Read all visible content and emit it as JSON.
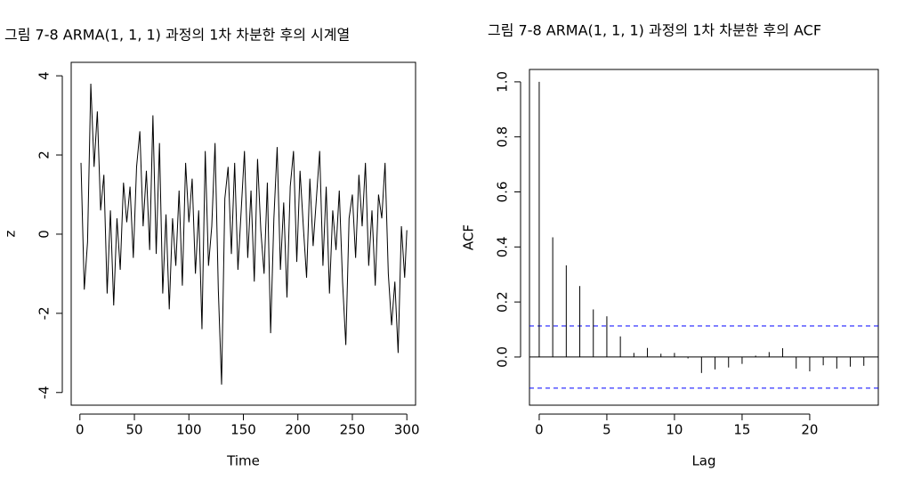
{
  "chart_data": [
    {
      "type": "line",
      "title": "그림 7-8 ARMA(1, 1, 1) 과정의 1차 차분한 후의 시계열",
      "x_label": "Time",
      "y_label": "z",
      "color": "#000000",
      "x": [
        1,
        4,
        7,
        10,
        13,
        16,
        19,
        22,
        25,
        28,
        31,
        34,
        37,
        40,
        43,
        46,
        49,
        52,
        55,
        58,
        61,
        64,
        67,
        70,
        73,
        76,
        79,
        82,
        85,
        88,
        91,
        94,
        97,
        100,
        103,
        106,
        109,
        112,
        115,
        118,
        121,
        124,
        127,
        130,
        133,
        136,
        139,
        142,
        145,
        148,
        151,
        154,
        157,
        160,
        163,
        166,
        169,
        172,
        175,
        178,
        181,
        184,
        187,
        190,
        193,
        196,
        199,
        202,
        205,
        208,
        211,
        214,
        217,
        220,
        223,
        226,
        229,
        232,
        235,
        238,
        241,
        244,
        247,
        250,
        253,
        256,
        259,
        262,
        265,
        268,
        271,
        274,
        277,
        280,
        283,
        286,
        289,
        292,
        295,
        298,
        300
      ],
      "values": [
        1.8,
        -1.4,
        -0.2,
        3.8,
        1.7,
        3.1,
        0.6,
        1.5,
        -1.5,
        0.6,
        -1.8,
        0.4,
        -0.9,
        1.3,
        0.3,
        1.2,
        -0.6,
        1.7,
        2.6,
        0.2,
        1.6,
        -0.4,
        3.0,
        -0.5,
        2.3,
        -1.5,
        0.5,
        -1.9,
        0.4,
        -0.8,
        1.1,
        -1.3,
        1.8,
        0.3,
        1.4,
        -1.0,
        0.6,
        -2.4,
        2.1,
        -0.8,
        0.2,
        2.3,
        -1.4,
        -3.8,
        0.9,
        1.7,
        -0.5,
        1.8,
        -0.9,
        0.6,
        2.1,
        -0.6,
        1.1,
        -1.2,
        1.9,
        0.1,
        -1.0,
        1.3,
        -2.5,
        0.4,
        2.2,
        -0.9,
        0.8,
        -1.6,
        1.2,
        2.1,
        -0.7,
        1.6,
        0.2,
        -1.1,
        1.4,
        -0.3,
        0.9,
        2.1,
        -0.8,
        1.2,
        -1.5,
        0.6,
        -0.4,
        1.1,
        -1.2,
        -2.8,
        0.4,
        1.0,
        -0.6,
        1.5,
        0.2,
        1.8,
        -0.8,
        0.6,
        -1.3,
        1.0,
        0.4,
        1.8,
        -1.0,
        -2.3,
        -1.2,
        -3.0,
        0.2,
        -1.1,
        0.1
      ],
      "xlim": [
        -8,
        308
      ],
      "ylim": [
        -4.32,
        4.34
      ],
      "xticks": [
        0,
        50,
        100,
        150,
        200,
        250,
        300
      ],
      "yticks": [
        -4,
        -2,
        0,
        2,
        4
      ]
    },
    {
      "type": "acf",
      "title": "그림 7-8 ARMA(1, 1, 1) 과정의 1차 차분한 후의 ACF",
      "x_label": "Lag",
      "y_label": "ACF",
      "color": "#000000",
      "x": [
        0,
        1,
        2,
        3,
        4,
        5,
        6,
        7,
        8,
        9,
        10,
        11,
        12,
        13,
        14,
        15,
        16,
        17,
        18,
        19,
        20,
        21,
        22,
        23,
        24
      ],
      "values": [
        1.0,
        0.435,
        0.333,
        0.258,
        0.173,
        0.148,
        0.075,
        0.015,
        0.033,
        0.012,
        0.015,
        -0.005,
        -0.058,
        -0.045,
        -0.038,
        -0.025,
        0.005,
        0.018,
        0.032,
        -0.042,
        -0.052,
        -0.03,
        -0.042,
        -0.035,
        -0.032
      ],
      "ci_bounds": [
        -0.113,
        0.113
      ],
      "ci_color": "#0000ff",
      "xlim": [
        -0.72,
        25.07
      ],
      "ylim": [
        -0.175,
        1.045
      ],
      "xticks": [
        0,
        5,
        10,
        15,
        20
      ],
      "yticks": [
        {
          "value": 0,
          "label": "0.0"
        },
        {
          "value": 0.2,
          "label": "0.2"
        },
        {
          "value": 0.4,
          "label": "0.4"
        },
        {
          "value": 0.6,
          "label": "0.6"
        },
        {
          "value": 0.8,
          "label": "0.8"
        },
        {
          "value": 1,
          "label": "1.0"
        }
      ]
    }
  ]
}
